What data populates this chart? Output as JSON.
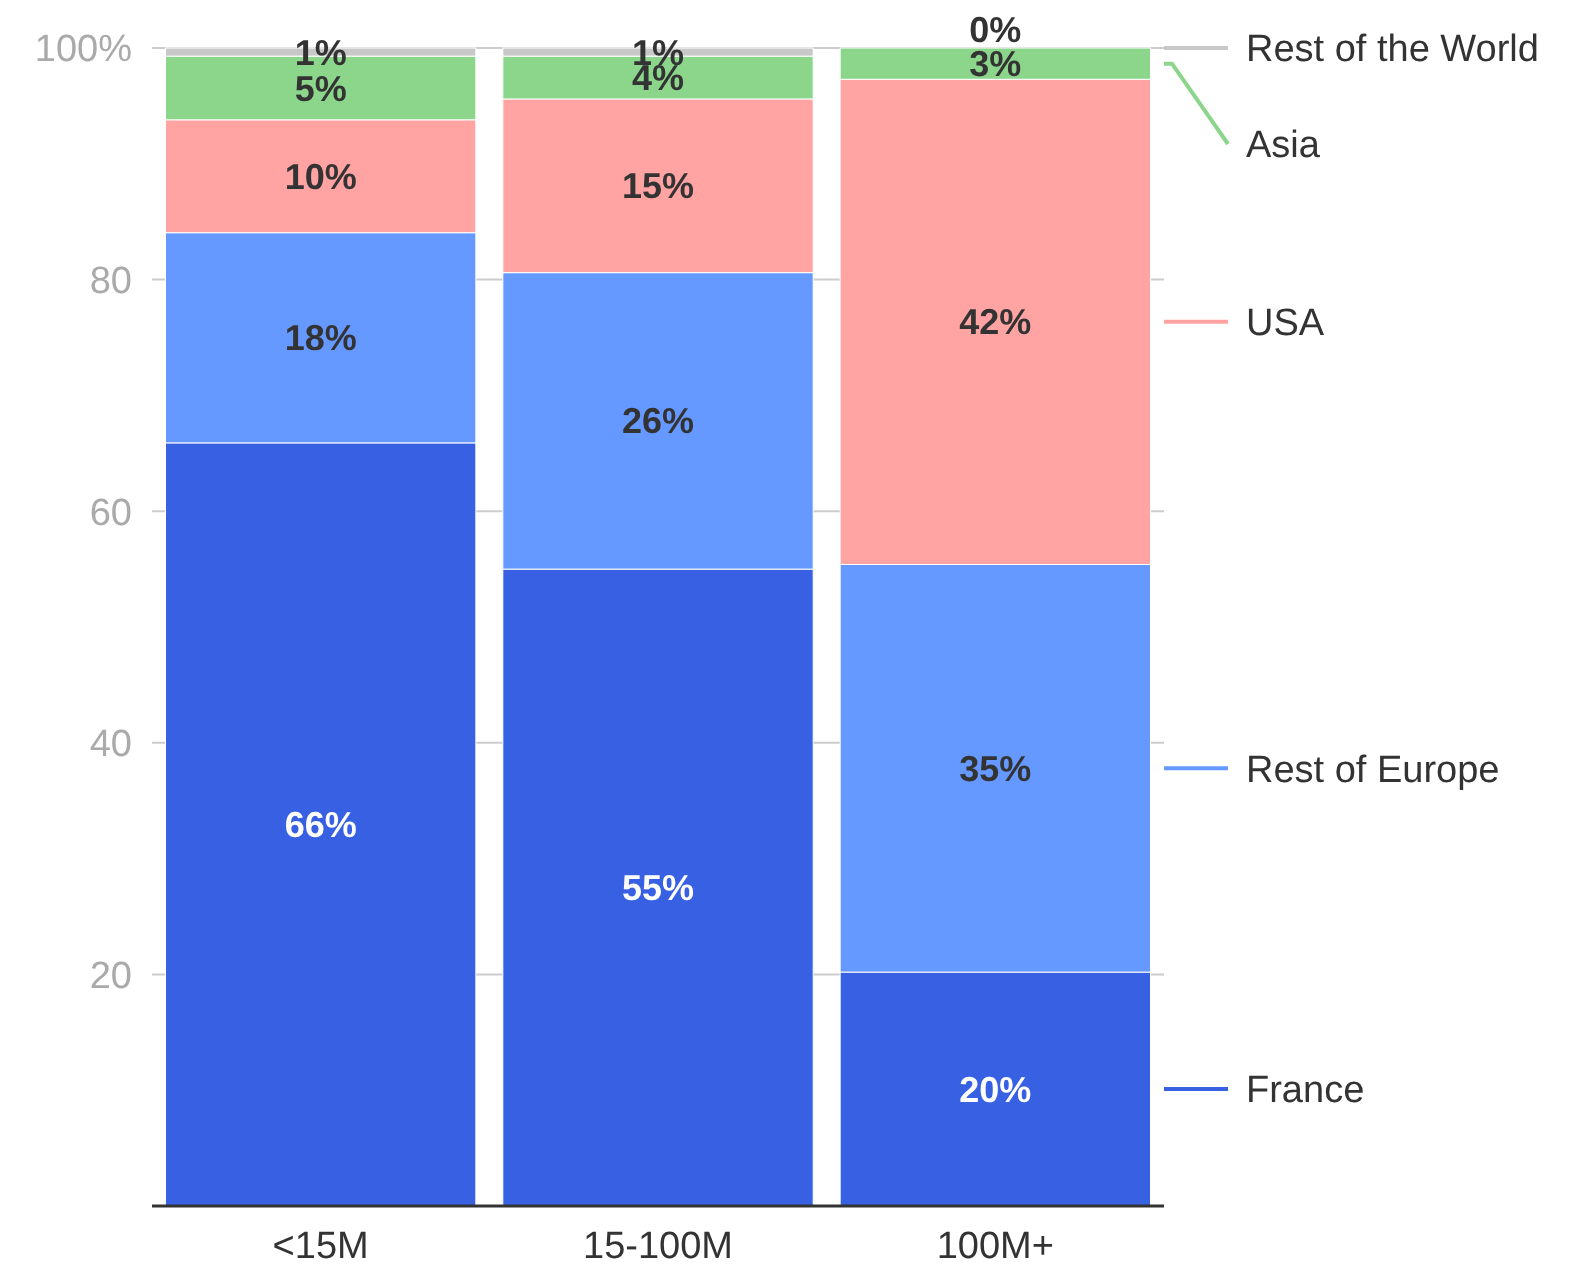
{
  "chart_data": {
    "type": "bar",
    "stacked": true,
    "categories": [
      "<15M",
      "15-100M",
      "100M+"
    ],
    "series": [
      {
        "name": "France",
        "color": "#3760e2",
        "values": [
          65.9,
          55,
          20.2
        ],
        "value_labels": [
          "66%",
          "55%",
          "20%"
        ]
      },
      {
        "name": "Rest of Europe",
        "color": "#6699ff",
        "values": [
          18.15,
          25.6,
          35.2
        ],
        "value_labels": [
          "18%",
          "26%",
          "35%"
        ]
      },
      {
        "name": "USA",
        "color": "#ffa3a3",
        "values": [
          9.75,
          15,
          41.9
        ],
        "value_labels": [
          "10%",
          "15%",
          "42%"
        ]
      },
      {
        "name": "Asia",
        "color": "#8cd68c",
        "values": [
          5.5,
          3.7,
          2.7
        ],
        "value_labels": [
          "5%",
          "4%",
          "3%"
        ]
      },
      {
        "name": "Rest of the World",
        "color": "#c8c8c8",
        "values": [
          0.7,
          0.7,
          0
        ],
        "value_labels": [
          "1%",
          "1%",
          "0%"
        ]
      }
    ],
    "ylim": [
      0,
      100
    ],
    "yticks": [
      20,
      40,
      60,
      80,
      {
        "value": 100,
        "label": "100%"
      }
    ],
    "grid": "y",
    "legend": "right"
  }
}
